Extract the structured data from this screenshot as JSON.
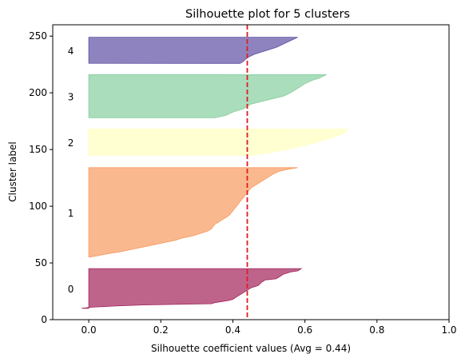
{
  "chart_data": {
    "type": "area",
    "title": "Silhouette plot for 5 clusters",
    "xlabel": "Silhouette coefficient values (Avg = 0.44)",
    "ylabel": "Cluster label",
    "xlim": [
      -0.1,
      1.0
    ],
    "ylim": [
      0,
      260
    ],
    "xticks": [
      "0.0",
      "0.2",
      "0.4",
      "0.6",
      "0.8",
      "1.0"
    ],
    "xtick_values": [
      0.0,
      0.2,
      0.4,
      0.6,
      0.8,
      1.0
    ],
    "yticks": [
      "0",
      "50",
      "100",
      "150",
      "200",
      "250"
    ],
    "ytick_values": [
      0,
      50,
      100,
      150,
      200,
      250
    ],
    "grid": false,
    "avg_silhouette": 0.44,
    "avg_line_color": "#e41a1c",
    "series": [
      {
        "label": "0",
        "y_range": [
          10,
          45
        ],
        "color": "#a2225a",
        "points": [
          [
            10,
            -0.02
          ],
          [
            11,
            0.01
          ],
          [
            12,
            0.07
          ],
          [
            13,
            0.15
          ],
          [
            14,
            0.34
          ],
          [
            15,
            0.35
          ],
          [
            16,
            0.37
          ],
          [
            17,
            0.39
          ],
          [
            18,
            0.4
          ],
          [
            20,
            0.41
          ],
          [
            22,
            0.42
          ],
          [
            24,
            0.43
          ],
          [
            26,
            0.44
          ],
          [
            28,
            0.45
          ],
          [
            30,
            0.47
          ],
          [
            33,
            0.48
          ],
          [
            35,
            0.49
          ],
          [
            36,
            0.52
          ],
          [
            38,
            0.53
          ],
          [
            40,
            0.54
          ],
          [
            42,
            0.56
          ],
          [
            43,
            0.58
          ],
          [
            45,
            0.59
          ]
        ]
      },
      {
        "label": "1",
        "y_range": [
          55,
          134
        ],
        "color": "#f89a60",
        "points": [
          [
            55,
            0.0
          ],
          [
            56,
            0.02
          ],
          [
            58,
            0.05
          ],
          [
            60,
            0.09
          ],
          [
            62,
            0.12
          ],
          [
            64,
            0.15
          ],
          [
            66,
            0.18
          ],
          [
            68,
            0.21
          ],
          [
            70,
            0.24
          ],
          [
            72,
            0.26
          ],
          [
            74,
            0.29
          ],
          [
            76,
            0.31
          ],
          [
            78,
            0.33
          ],
          [
            80,
            0.34
          ],
          [
            84,
            0.35
          ],
          [
            88,
            0.37
          ],
          [
            92,
            0.39
          ],
          [
            96,
            0.4
          ],
          [
            100,
            0.41
          ],
          [
            104,
            0.42
          ],
          [
            108,
            0.43
          ],
          [
            112,
            0.44
          ],
          [
            116,
            0.45
          ],
          [
            120,
            0.47
          ],
          [
            124,
            0.49
          ],
          [
            128,
            0.51
          ],
          [
            131,
            0.53
          ],
          [
            133,
            0.56
          ],
          [
            134,
            0.58
          ]
        ]
      },
      {
        "label": "2",
        "y_range": [
          145,
          168
        ],
        "color": "#ffffbf",
        "points": [
          [
            145,
            0.45
          ],
          [
            147,
            0.5
          ],
          [
            150,
            0.55
          ],
          [
            153,
            0.59
          ],
          [
            156,
            0.63
          ],
          [
            159,
            0.66
          ],
          [
            162,
            0.69
          ],
          [
            165,
            0.71
          ],
          [
            168,
            0.72
          ]
        ]
      },
      {
        "label": "3",
        "y_range": [
          178,
          216
        ],
        "color": "#86cf9e",
        "points": [
          [
            178,
            0.35
          ],
          [
            180,
            0.38
          ],
          [
            183,
            0.4
          ],
          [
            186,
            0.43
          ],
          [
            190,
            0.45
          ],
          [
            194,
            0.5
          ],
          [
            197,
            0.54
          ],
          [
            200,
            0.56
          ],
          [
            204,
            0.58
          ],
          [
            208,
            0.6
          ],
          [
            211,
            0.62
          ],
          [
            213,
            0.64
          ],
          [
            216,
            0.66
          ]
        ]
      },
      {
        "label": "4",
        "y_range": [
          226,
          249
        ],
        "color": "#5e4fa2",
        "points": [
          [
            226,
            0.42
          ],
          [
            228,
            0.43
          ],
          [
            231,
            0.44
          ],
          [
            234,
            0.46
          ],
          [
            237,
            0.49
          ],
          [
            240,
            0.52
          ],
          [
            243,
            0.54
          ],
          [
            246,
            0.56
          ],
          [
            249,
            0.58
          ]
        ]
      }
    ]
  }
}
